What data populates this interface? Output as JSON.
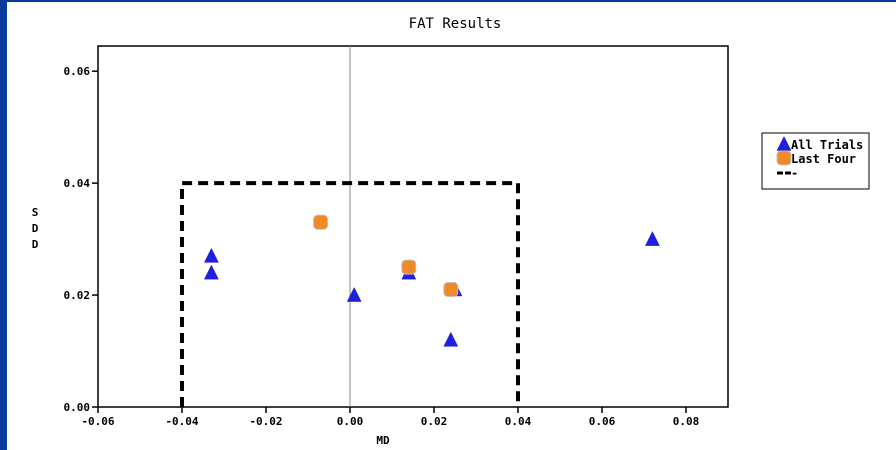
{
  "chart_data": {
    "type": "scatter",
    "title": "FAT Results",
    "xlabel": "MD",
    "ylabel": "SDD",
    "xlim": [
      -0.06,
      0.09
    ],
    "ylim": [
      0.0,
      0.0645
    ],
    "x_ticks": [
      "-0.06",
      "-0.04",
      "-0.02",
      "0.00",
      "0.02",
      "0.04",
      "0.06",
      "0.08"
    ],
    "y_ticks": [
      "0.00",
      "0.02",
      "0.04",
      "0.06"
    ],
    "x_tick_values": [
      -0.06,
      -0.04,
      -0.02,
      0.0,
      0.02,
      0.04,
      0.06,
      0.08
    ],
    "y_tick_values": [
      0.0,
      0.02,
      0.04,
      0.06
    ],
    "grid": false,
    "reference_line_x": 0.0,
    "legend_position": "right",
    "series": [
      {
        "name": "All Trials",
        "marker": "triangle",
        "color": "#1f1fe0",
        "points": [
          {
            "x": -0.033,
            "y": 0.027
          },
          {
            "x": -0.033,
            "y": 0.024
          },
          {
            "x": 0.001,
            "y": 0.02
          },
          {
            "x": 0.014,
            "y": 0.024
          },
          {
            "x": 0.025,
            "y": 0.021
          },
          {
            "x": 0.024,
            "y": 0.012
          },
          {
            "x": 0.072,
            "y": 0.03
          }
        ]
      },
      {
        "name": "Last Four",
        "marker": "square",
        "color": "#f08a24",
        "points": [
          {
            "x": -0.007,
            "y": 0.033
          },
          {
            "x": 0.014,
            "y": 0.025
          },
          {
            "x": 0.024,
            "y": 0.021
          }
        ]
      },
      {
        "name": "-",
        "marker": "dashed-box",
        "color": "#000000",
        "points": [
          {
            "x": -0.04,
            "y": 0.0
          },
          {
            "x": -0.04,
            "y": 0.04
          },
          {
            "x": 0.04,
            "y": 0.04
          },
          {
            "x": 0.04,
            "y": 0.0
          }
        ]
      }
    ]
  }
}
